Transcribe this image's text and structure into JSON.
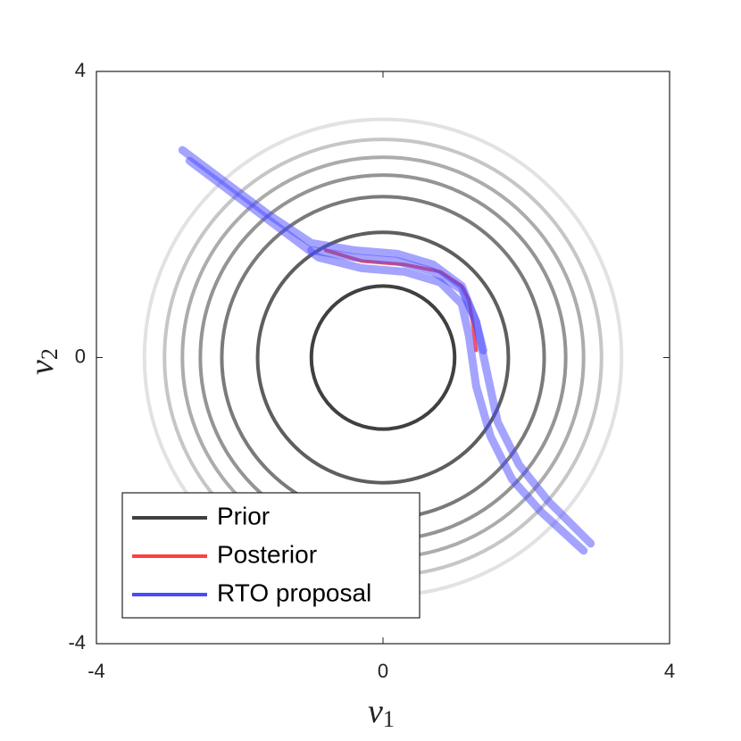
{
  "chart_data": {
    "type": "contour",
    "xlabel": {
      "base": "v",
      "sub": "1"
    },
    "ylabel": {
      "base": "v",
      "sub": "2"
    },
    "xlim": [
      -4,
      4
    ],
    "ylim": [
      -4,
      4
    ],
    "xticks": [
      -4,
      0,
      4
    ],
    "yticks": [
      -4,
      0,
      4
    ],
    "grid": false,
    "legend": "lower left",
    "series": [
      {
        "name": "Prior",
        "color": "#404040",
        "radii": [
          1.0,
          1.75,
          2.25,
          2.55,
          2.8,
          3.05,
          3.33
        ],
        "colors": [
          "#404040",
          "#5e5e5e",
          "#7a7a7a",
          "#949494",
          "#acacac",
          "#c6c6c6",
          "#e2e2e2"
        ]
      },
      {
        "name": "Posterior",
        "color": "#ff4040",
        "curves": [
          {
            "x": [
              -0.8,
              -0.3,
              0.3,
              0.8,
              1.1,
              1.2,
              1.25,
              1.3
            ],
            "y": [
              1.5,
              1.35,
              1.3,
              1.2,
              1.0,
              0.8,
              0.5,
              0.1
            ]
          }
        ]
      },
      {
        "name": "RTO proposal",
        "color": "#4a4aff",
        "curves": [
          {
            "x": [
              -2.8,
              -2.2,
              -1.6,
              -1.0,
              -0.4,
              0.2,
              0.7,
              1.1,
              1.3,
              1.45,
              1.6,
              1.9,
              2.3,
              2.9
            ],
            "y": [
              2.9,
              2.45,
              2.0,
              1.6,
              1.5,
              1.45,
              1.3,
              1.0,
              0.5,
              -0.2,
              -0.9,
              -1.5,
              -2.0,
              -2.6
            ]
          },
          {
            "x": [
              -2.7,
              -2.1,
              -1.5,
              -0.9,
              -0.3,
              0.3,
              0.8,
              1.1,
              1.2,
              1.3,
              1.5,
              1.8,
              2.2,
              2.8
            ],
            "y": [
              2.75,
              2.3,
              1.85,
              1.4,
              1.25,
              1.2,
              1.05,
              0.75,
              0.3,
              -0.4,
              -1.1,
              -1.7,
              -2.15,
              -2.7
            ]
          },
          {
            "x": [
              -1.0,
              -0.4,
              0.2,
              0.7,
              1.1,
              1.3,
              1.4
            ],
            "y": [
              1.5,
              1.4,
              1.35,
              1.2,
              0.95,
              0.5,
              0.1
            ]
          }
        ]
      }
    ]
  }
}
